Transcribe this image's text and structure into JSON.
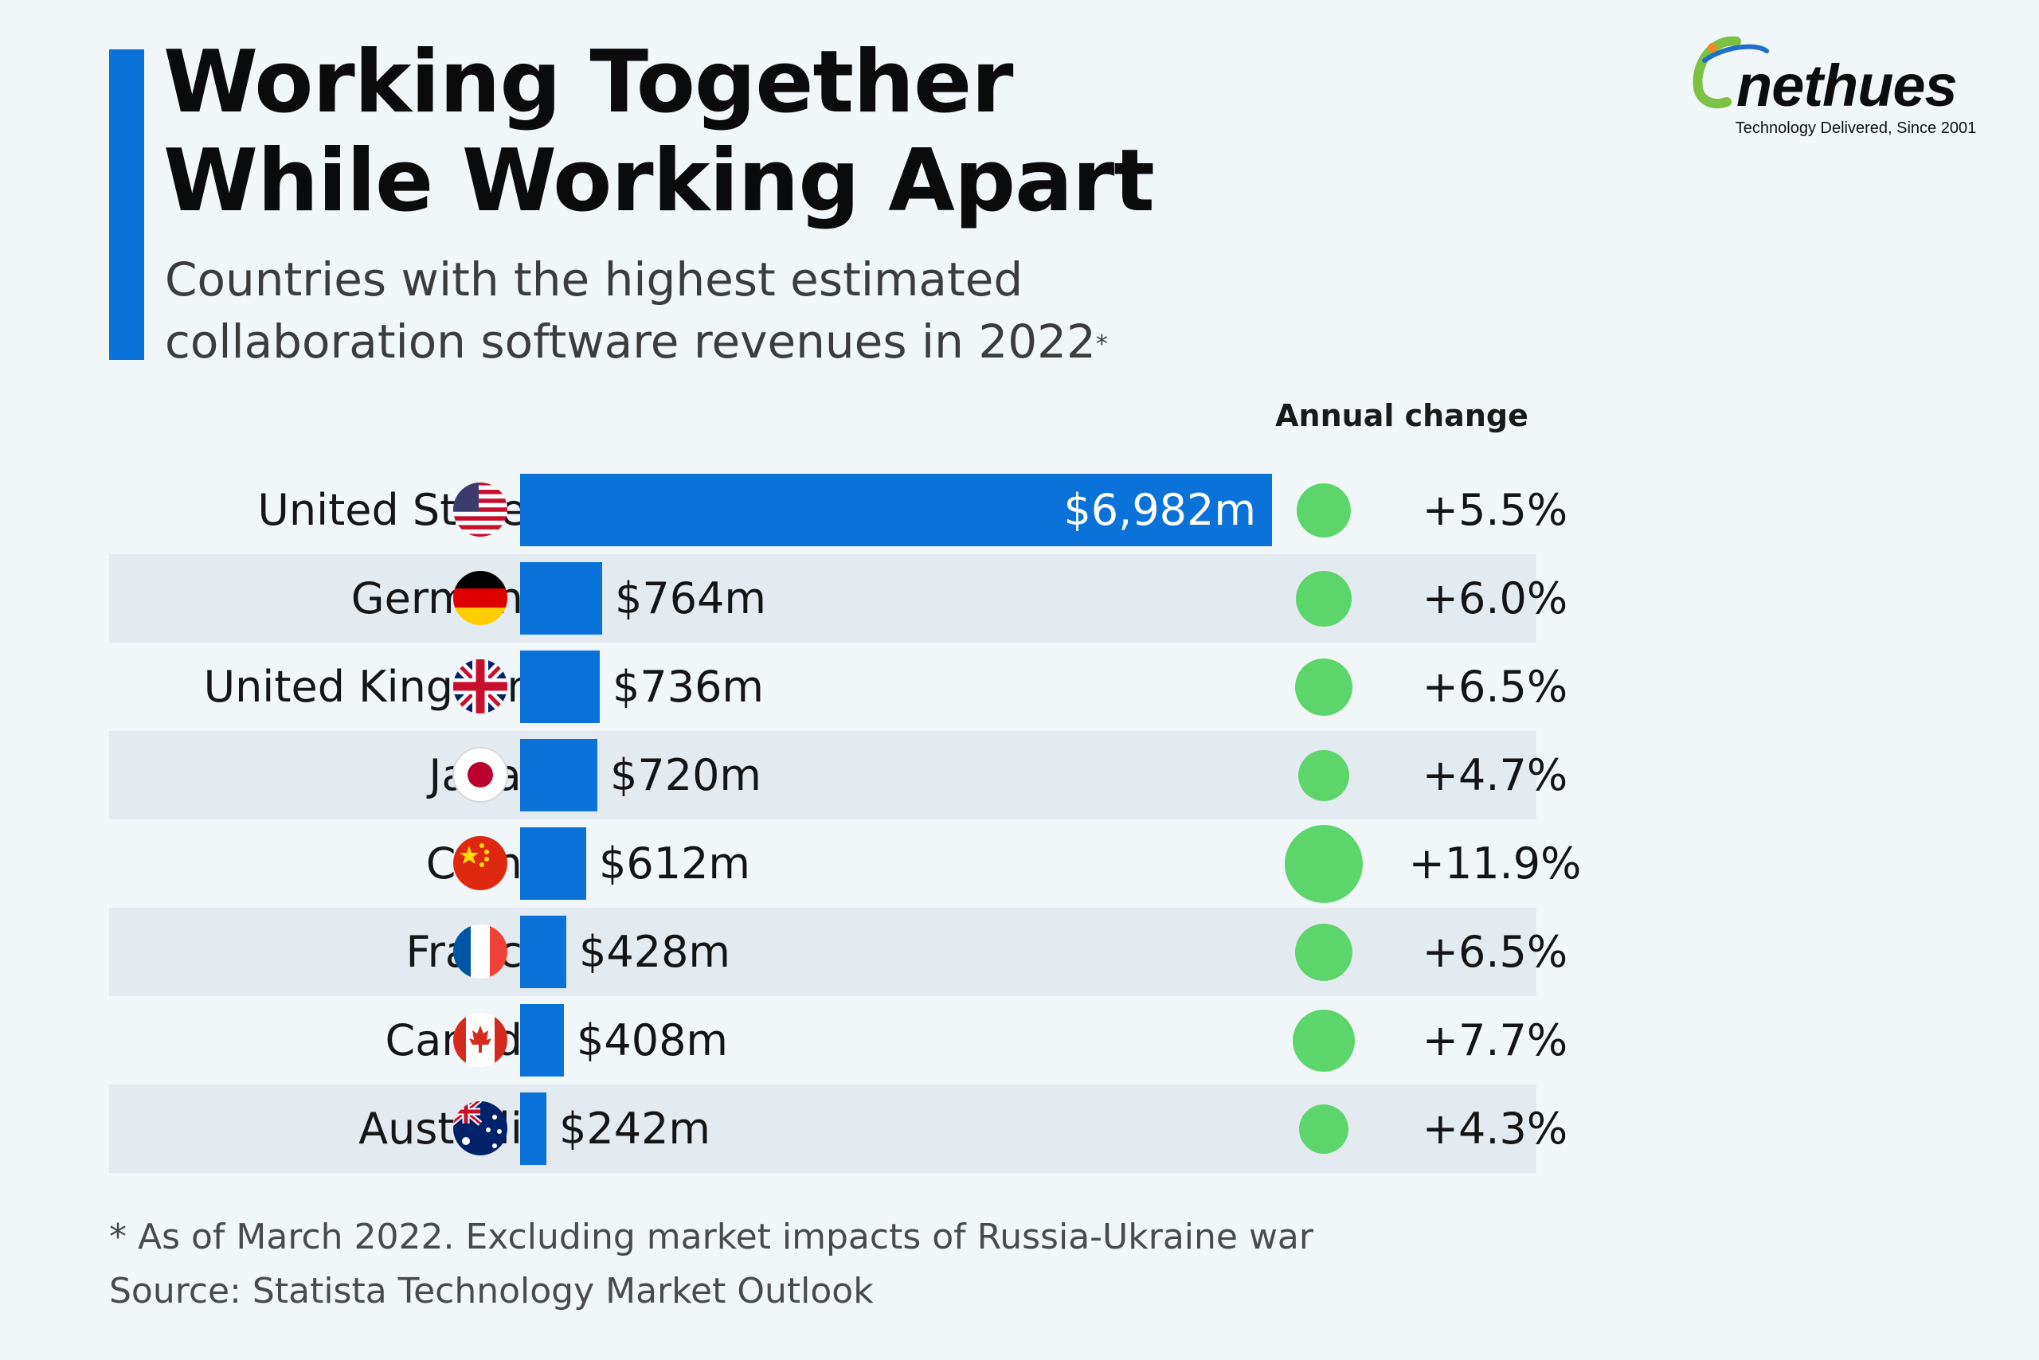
{
  "title_lines": [
    "Working Together",
    "While Working Apart"
  ],
  "subtitle_lines": [
    "Countries with the highest estimated",
    "collaboration software revenues in 2022"
  ],
  "subtitle_marker": "*",
  "logo": {
    "word": "nethues",
    "tagline": "Technology Delivered, Since 2001"
  },
  "annual_change_header": "Annual change",
  "footnote": "* As of March 2022. Excluding market impacts of Russia-Ukraine war",
  "source": "Source: Statista Technology Market Outlook",
  "colors": {
    "accent": "#0a72d8",
    "bar": "#0a72d8",
    "dot": "#5cd66b",
    "background": "#f1f6f9",
    "row_shade": "#e3eaf0"
  },
  "chart_data": {
    "type": "bar",
    "orientation": "horizontal",
    "categories": [
      "United States",
      "Germany",
      "United Kingdom",
      "Japan",
      "China",
      "France",
      "Canada",
      "Australia"
    ],
    "flags": [
      "us-flag-icon",
      "de-flag-icon",
      "uk-flag-icon",
      "jp-flag-icon",
      "cn-flag-icon",
      "fr-flag-icon",
      "ca-flag-icon",
      "au-flag-icon"
    ],
    "values": [
      6982,
      764,
      736,
      720,
      612,
      428,
      408,
      242
    ],
    "value_labels": [
      "$6,982m",
      "$764m",
      "$736m",
      "$720m",
      "$612m",
      "$428m",
      "$408m",
      "$242m"
    ],
    "annual_change": [
      5.5,
      6.0,
      6.5,
      4.7,
      11.9,
      6.5,
      7.7,
      4.3
    ],
    "annual_change_labels": [
      "+5.5%",
      "+6.0%",
      "+6.5%",
      "+4.7%",
      "+11.9%",
      "+6.5%",
      "+7.7%",
      "+4.3%"
    ],
    "xlim": [
      0,
      6982
    ],
    "grid": false,
    "legend": "none"
  }
}
